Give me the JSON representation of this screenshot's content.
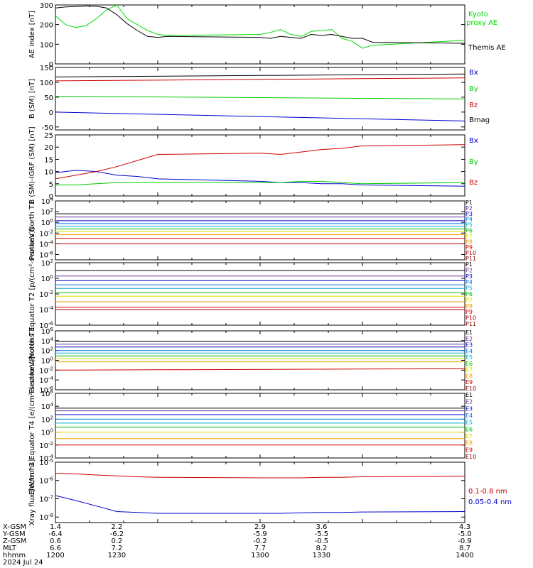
{
  "date_label": "2024 Jul 24",
  "footer": {
    "rows": [
      {
        "label": "X-GSM",
        "values": [
          "1.4",
          "2.2",
          "2.9",
          "3.6",
          "4.3"
        ]
      },
      {
        "label": "Y-GSM",
        "values": [
          "-6.4",
          "-6.2",
          "-5.9",
          "-5.5",
          "-5.0"
        ]
      },
      {
        "label": "Z-GSM",
        "values": [
          "0.6",
          "0.2",
          "-0.2",
          "-0.5",
          "-0.9"
        ]
      },
      {
        "label": "MLT",
        "values": [
          "6.6",
          "7.2",
          "7.7",
          "8.2",
          "8.7"
        ]
      },
      {
        "label": "hhmm",
        "values": [
          "1200",
          "1230",
          "1300",
          "1330",
          "1400"
        ]
      }
    ]
  },
  "chart_data": [
    {
      "type": "line",
      "ylabel": "AE index [nT]",
      "yscale": "linear",
      "ylim": [
        0,
        300
      ],
      "yticks": [
        "0",
        "100",
        "200",
        "300"
      ],
      "x": [
        1200,
        1205,
        1210,
        1215,
        1220,
        1225,
        1230,
        1235,
        1240,
        1245,
        1250,
        1255,
        1300,
        1305,
        1310,
        1315,
        1320,
        1325,
        1330,
        1335,
        1340,
        1345,
        1350,
        1355,
        1400
      ],
      "series": [
        {
          "name": "Kyoto proxy AE",
          "color": "#00dd00",
          "values": [
            245,
            200,
            185,
            195,
            230,
            275,
            300,
            230,
            200,
            170,
            150,
            145,
            150,
            160,
            175,
            150,
            140,
            165,
            170,
            175,
            130,
            115,
            80,
            95,
            120
          ]
        },
        {
          "name": "Themis AE",
          "color": "#000000",
          "values": [
            285,
            290,
            292,
            295,
            293,
            285,
            250,
            205,
            170,
            140,
            135,
            140,
            135,
            130,
            140,
            135,
            130,
            150,
            145,
            150,
            140,
            130,
            130,
            110,
            105
          ]
        }
      ]
    },
    {
      "type": "line",
      "ylabel": "B (SM) [nT]",
      "yscale": "linear",
      "ylim": [
        -60,
        150
      ],
      "yticks": [
        "-50",
        "0",
        "50",
        "100",
        "150"
      ],
      "x": [
        1200,
        1400
      ],
      "series": [
        {
          "name": "Bx",
          "color": "#0000cc",
          "values": [
            0,
            -30
          ]
        },
        {
          "name": "By",
          "color": "#00cc00",
          "values": [
            53,
            44
          ]
        },
        {
          "name": "Bz",
          "color": "#cc0000",
          "values": [
            105,
            115
          ]
        },
        {
          "name": "Bmag",
          "color": "#000000",
          "values": [
            118,
            128
          ]
        }
      ]
    },
    {
      "type": "line",
      "ylabel": "B (SM)-IGRF (SM) [nT]",
      "yscale": "linear",
      "ylim": [
        0,
        25
      ],
      "yticks": [
        "0",
        "5",
        "10",
        "15",
        "20",
        "25"
      ],
      "x": [
        1200,
        1210,
        1220,
        1230,
        1240,
        1250,
        1300,
        1310,
        1320,
        1330,
        1340,
        1350,
        1400
      ],
      "series": [
        {
          "name": "Bx",
          "color": "#0000cc",
          "values": [
            9.5,
            10.5,
            10,
            8.5,
            8,
            7,
            6,
            5.5,
            5.5,
            5,
            5,
            4.5,
            4
          ]
        },
        {
          "name": "By",
          "color": "#00cc00",
          "values": [
            4.5,
            4.5,
            5,
            5.5,
            5.5,
            5.5,
            5.5,
            5.5,
            6,
            6,
            5.5,
            5,
            5.5
          ]
        },
        {
          "name": "Bz",
          "color": "#cc0000",
          "values": [
            7,
            8.5,
            10,
            12,
            14.5,
            17,
            17.5,
            17,
            18,
            19,
            19.5,
            20.5,
            21
          ]
        }
      ]
    },
    {
      "type": "line",
      "ylabel": "Protons North T1",
      "yscale": "log",
      "ylim": [
        1e-07,
        10000.0
      ],
      "yticks": [
        "10^4",
        "10^2",
        "10^0",
        "10^-2",
        "10^-4",
        "10^-6"
      ],
      "x": [
        1200,
        1400
      ],
      "series": [
        {
          "name": "P1",
          "color": "#000000",
          "values": [
            40,
            40
          ]
        },
        {
          "name": "P2",
          "color": "#663399",
          "values": [
            10,
            10
          ]
        },
        {
          "name": "P3",
          "color": "#0000cc",
          "values": [
            2,
            2
          ]
        },
        {
          "name": "P4",
          "color": "#0077ee",
          "values": [
            0.6,
            0.6
          ]
        },
        {
          "name": "P5",
          "color": "#00aacc",
          "values": [
            0.2,
            0.2
          ]
        },
        {
          "name": "P6",
          "color": "#00bb00",
          "values": [
            0.06,
            0.06
          ]
        },
        {
          "name": "P7",
          "color": "#dddd00",
          "values": [
            0.02,
            0.02
          ]
        },
        {
          "name": "P8",
          "color": "#ee9900",
          "values": [
            0.005,
            0.005
          ]
        },
        {
          "name": "P9",
          "color": "#dd0000",
          "values": [
            0.001,
            0.001
          ]
        },
        {
          "name": "P10",
          "color": "#aa0000",
          "values": [
            0.0001,
            0.0001
          ]
        },
        {
          "name": "P11",
          "color": "#880000",
          "values": [
            null,
            null
          ]
        }
      ]
    },
    {
      "type": "line",
      "ylabel": "Protons Equator T2 [p/(cm²-s-sr-keV)]",
      "yscale": "log",
      "ylim": [
        1e-06,
        100.0
      ],
      "yticks": [
        "10^2",
        "10^0",
        "10^-2",
        "10^-4",
        "10^-6"
      ],
      "x": [
        1200,
        1400
      ],
      "series": [
        {
          "name": "P1",
          "color": "#000000",
          "values": [
            10,
            10
          ]
        },
        {
          "name": "P2",
          "color": "#663399",
          "values": [
            2,
            2
          ]
        },
        {
          "name": "P3",
          "color": "#0000cc",
          "values": [
            0.5,
            0.5
          ]
        },
        {
          "name": "P4",
          "color": "#0077ee",
          "values": [
            0.15,
            0.15
          ]
        },
        {
          "name": "P5",
          "color": "#00aacc",
          "values": [
            0.05,
            0.05
          ]
        },
        {
          "name": "P6",
          "color": "#00bb00",
          "values": [
            0.015,
            0.015
          ]
        },
        {
          "name": "P7",
          "color": "#dddd00",
          "values": [
            0.005,
            0.005
          ]
        },
        {
          "name": "P8",
          "color": "#ee9900",
          "values": [
            0.001,
            0.001
          ]
        },
        {
          "name": "P9",
          "color": "#dd0000",
          "values": [
            0.0002,
            0.0002
          ]
        },
        {
          "name": "P10",
          "color": "#aa0000",
          "values": [
            0.0001,
            0.0001
          ]
        },
        {
          "name": "P11",
          "color": "#880000",
          "values": [
            null,
            null
          ]
        }
      ]
    },
    {
      "type": "line",
      "ylabel": "Electrons North T3",
      "yscale": "log",
      "ylim": [
        1e-06,
        1000000.0
      ],
      "yticks": [
        "10^6",
        "10^4",
        "10^2",
        "10^0",
        "10^-2",
        "10^-4",
        "10^-6"
      ],
      "x": [
        1200,
        1400
      ],
      "series": [
        {
          "name": "E1",
          "color": "#000000",
          "values": [
            8000,
            8000
          ]
        },
        {
          "name": "E2",
          "color": "#663399",
          "values": [
            2000,
            2000
          ]
        },
        {
          "name": "E3",
          "color": "#0000cc",
          "values": [
            500,
            500
          ]
        },
        {
          "name": "E4",
          "color": "#0077ee",
          "values": [
            100,
            100
          ]
        },
        {
          "name": "E5",
          "color": "#00aacc",
          "values": [
            30,
            30
          ]
        },
        {
          "name": "E6",
          "color": "#00bb00",
          "values": [
            8,
            8
          ]
        },
        {
          "name": "E7",
          "color": "#dddd00",
          "values": [
            2,
            2
          ]
        },
        {
          "name": "E8",
          "color": "#ee9900",
          "values": [
            0.5,
            0.5
          ]
        },
        {
          "name": "E9",
          "color": "#cc0000",
          "values": [
            0.01,
            0.02
          ]
        },
        {
          "name": "E10",
          "color": "#880000",
          "values": [
            null,
            null
          ]
        }
      ]
    },
    {
      "type": "line",
      "ylabel": "Electrons Equator T4 [e/(cm²-s-sr-keV)]",
      "yscale": "log",
      "ylim": [
        0.0001,
        1000000.0
      ],
      "yticks": [
        "10^6",
        "10^4",
        "10^2",
        "10^0",
        "10^-2",
        "10^-4"
      ],
      "x": [
        1200,
        1400
      ],
      "series": [
        {
          "name": "E1",
          "color": "#000000",
          "values": [
            5000,
            5000
          ]
        },
        {
          "name": "E2",
          "color": "#663399",
          "values": [
            2000,
            2000
          ]
        },
        {
          "name": "E3",
          "color": "#0000cc",
          "values": [
            500,
            500
          ]
        },
        {
          "name": "E4",
          "color": "#0077ee",
          "values": [
            100,
            100
          ]
        },
        {
          "name": "E5",
          "color": "#00aacc",
          "values": [
            25,
            25
          ]
        },
        {
          "name": "E6",
          "color": "#00bb00",
          "values": [
            6,
            6
          ]
        },
        {
          "name": "E7",
          "color": "#dddd00",
          "values": [
            1,
            1
          ]
        },
        {
          "name": "E8",
          "color": "#ee9900",
          "values": [
            0.1,
            0.1
          ]
        },
        {
          "name": "E9",
          "color": "#cc0000",
          "values": [
            0.01,
            0.01
          ]
        },
        {
          "name": "E10",
          "color": "#880000",
          "values": [
            null,
            null
          ]
        }
      ]
    },
    {
      "type": "line",
      "ylabel": "Xray flux [W/m^2]",
      "yscale": "log",
      "ylim": [
        5e-09,
        1e-05
      ],
      "yticks": [
        "10^-5",
        "10^-6",
        "10^-7",
        "10^-8"
      ],
      "x": [
        1200,
        1210,
        1220,
        1230,
        1240,
        1250,
        1300,
        1310,
        1320,
        1330,
        1340,
        1350,
        1400
      ],
      "series": [
        {
          "name": "0.1-0.8 nm",
          "color": "#cc0000",
          "values": [
            2.5e-06,
            2.3e-06,
            2e-06,
            1.8e-06,
            1.6e-06,
            1.5e-06,
            1.4e-06,
            1.4e-06,
            1.4e-06,
            1.5e-06,
            1.5e-06,
            1.6e-06,
            1.7e-06
          ]
        },
        {
          "name": "0.05-0.4 nm",
          "color": "#0000cc",
          "values": [
            1.5e-07,
            8e-08,
            4e-08,
            2e-08,
            1.8e-08,
            1.6e-08,
            1.6e-08,
            1.6e-08,
            1.7e-08,
            1.8e-08,
            1.8e-08,
            1.9e-08,
            2e-08
          ]
        }
      ]
    }
  ]
}
